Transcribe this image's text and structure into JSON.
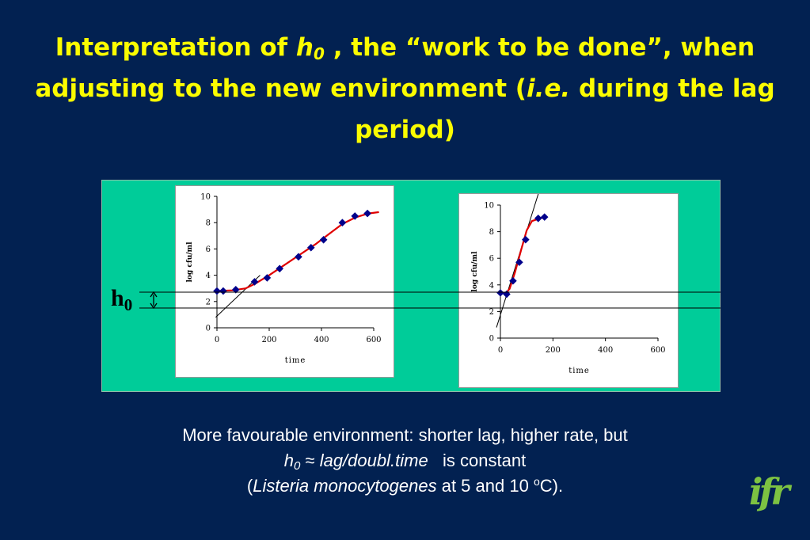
{
  "slide": {
    "title": {
      "part1": "Interpretation of ",
      "h": "h",
      "sub": "0",
      "part2": " , the “work to be done”, when adjusting to the new environment (",
      "ie": "i.e.",
      "part3": " during the lag period)"
    },
    "h0_label": {
      "h": "h",
      "sub": "0"
    },
    "caption": {
      "line1": "More favourable environment: shorter lag, higher rate, but",
      "line2_h": "h",
      "line2_sub": "0",
      "line2_approx": " ≈ ",
      "line2_ratio": "lag/doubl.time",
      "line2_rest": "   is constant",
      "line3_open": "(",
      "line3_species": "Listeria monocytogenes",
      "line3_rest": " at 5 and 10 ",
      "line3_sup": "o",
      "line3_close": "C)."
    },
    "logo": "ifr"
  },
  "colors": {
    "background": "#022151",
    "title": "#fbfc00",
    "panel": "#00cc99",
    "fit_curve": "#e00000",
    "markers": "#00008b",
    "logo": "#7dc242"
  },
  "chart_data": [
    {
      "type": "scatter",
      "xlabel": "time",
      "ylabel": "log cfu/ml",
      "xlim": [
        0,
        600
      ],
      "ylim": [
        0,
        10
      ],
      "xticks": [
        "0",
        "200",
        "400",
        "600"
      ],
      "yticks": [
        "0",
        "2",
        "4",
        "6",
        "8",
        "10"
      ],
      "grid": false,
      "points": [
        [
          0,
          2.8
        ],
        [
          24,
          2.8
        ],
        [
          72,
          2.9
        ],
        [
          144,
          3.5
        ],
        [
          192,
          3.8
        ],
        [
          240,
          4.5
        ],
        [
          312,
          5.4
        ],
        [
          360,
          6.1
        ],
        [
          408,
          6.7
        ],
        [
          480,
          8.0
        ],
        [
          528,
          8.5
        ],
        [
          576,
          8.7
        ]
      ],
      "fit_curve": [
        [
          0,
          2.8
        ],
        [
          60,
          2.85
        ],
        [
          110,
          3.0
        ],
        [
          150,
          3.4
        ],
        [
          200,
          4.0
        ],
        [
          260,
          4.8
        ],
        [
          320,
          5.6
        ],
        [
          380,
          6.4
        ],
        [
          440,
          7.3
        ],
        [
          480,
          7.9
        ],
        [
          530,
          8.4
        ],
        [
          580,
          8.7
        ],
        [
          620,
          8.8
        ]
      ],
      "tangent": [
        [
          -5,
          0.8
        ],
        [
          165,
          4.0
        ]
      ]
    },
    {
      "type": "scatter",
      "xlabel": "time",
      "ylabel": "log cfu/ml",
      "xlim": [
        0,
        600
      ],
      "ylim": [
        0,
        10
      ],
      "xticks": [
        "0",
        "200",
        "400",
        "600"
      ],
      "yticks": [
        "0",
        "2",
        "4",
        "6",
        "8",
        "10"
      ],
      "grid": false,
      "points": [
        [
          0,
          3.4
        ],
        [
          24,
          3.3
        ],
        [
          48,
          4.3
        ],
        [
          72,
          5.7
        ],
        [
          96,
          7.4
        ],
        [
          144,
          9.0
        ],
        [
          168,
          9.1
        ]
      ],
      "fit_curve": [
        [
          0,
          3.4
        ],
        [
          20,
          3.35
        ],
        [
          35,
          3.7
        ],
        [
          55,
          4.9
        ],
        [
          80,
          6.7
        ],
        [
          100,
          8.1
        ],
        [
          120,
          8.8
        ],
        [
          150,
          9.0
        ],
        [
          175,
          9.1
        ]
      ],
      "tangent": [
        [
          -15,
          0.8
        ],
        [
          150,
          11.2
        ]
      ]
    }
  ]
}
